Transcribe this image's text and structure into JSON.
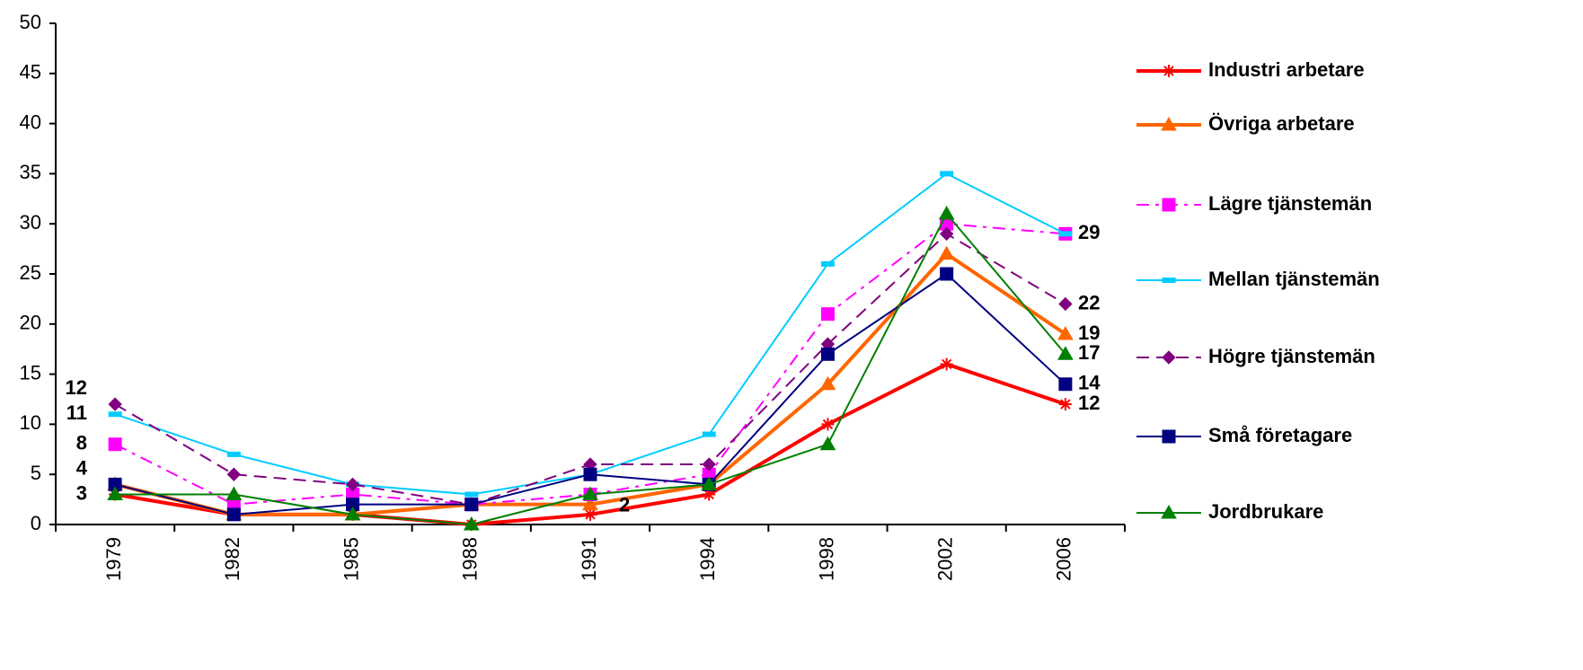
{
  "chart_data": {
    "type": "line",
    "categories": [
      "1979",
      "1982",
      "1985",
      "1988",
      "1991",
      "1994",
      "1998",
      "2002",
      "2006"
    ],
    "ylim": [
      0,
      50
    ],
    "yticks": [
      0,
      5,
      10,
      15,
      20,
      25,
      30,
      35,
      40,
      45,
      50
    ],
    "series": [
      {
        "name": "Industri arbetare",
        "color": "#ff0000",
        "marker": "star",
        "values": [
          3,
          1,
          1,
          0,
          1,
          3,
          10,
          16,
          12
        ],
        "value_labels": [
          null,
          null,
          null,
          null,
          null,
          null,
          null,
          null,
          "12"
        ]
      },
      {
        "name": "Övriga arbetare",
        "color": "#ff6600",
        "marker": "triangle",
        "values": [
          4,
          1,
          1,
          2,
          2,
          4,
          14,
          27,
          19
        ],
        "value_labels": [
          null,
          null,
          null,
          null,
          "2",
          null,
          null,
          null,
          "19"
        ]
      },
      {
        "name": "Lägre tjänstemän",
        "color": "#ff00ff",
        "marker": "square",
        "dash": "dash-dot",
        "values": [
          8,
          2,
          3,
          2,
          3,
          5,
          21,
          30,
          29
        ],
        "value_labels": [
          "8",
          null,
          null,
          null,
          null,
          null,
          null,
          null,
          "29"
        ]
      },
      {
        "name": "Mellan tjänstemän",
        "color": "#00ccff",
        "marker": "dash",
        "values": [
          11,
          7,
          4,
          3,
          5,
          9,
          26,
          35,
          29
        ],
        "value_labels": [
          "11",
          null,
          null,
          null,
          null,
          null,
          null,
          null,
          null
        ]
      },
      {
        "name": "Högre tjänstemän",
        "color": "#800080",
        "marker": "diamond",
        "dash": "dashed",
        "values": [
          12,
          5,
          4,
          2,
          6,
          6,
          18,
          29,
          22
        ],
        "value_labels": [
          "12",
          null,
          null,
          null,
          null,
          null,
          null,
          null,
          "22"
        ]
      },
      {
        "name": "Små företagare",
        "color": "#000080",
        "marker": "square",
        "values": [
          4,
          1,
          2,
          2,
          5,
          4,
          17,
          25,
          14
        ],
        "value_labels": [
          "4",
          null,
          null,
          null,
          null,
          null,
          null,
          null,
          "14"
        ]
      },
      {
        "name": "Jordbrukare",
        "color": "#008000",
        "marker": "triangle",
        "values": [
          3,
          3,
          1,
          0,
          3,
          4,
          8,
          31,
          17
        ],
        "value_labels": [
          "3",
          null,
          null,
          null,
          null,
          null,
          null,
          null,
          "17"
        ]
      }
    ]
  }
}
